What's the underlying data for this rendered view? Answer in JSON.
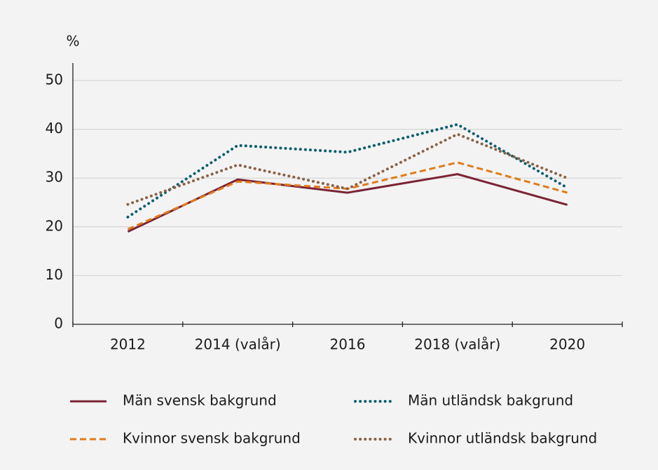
{
  "chart_data": {
    "type": "line",
    "y_label": "%",
    "categories": [
      "2012",
      "2014 (valår)",
      "2016",
      "2018 (valår)",
      "2020"
    ],
    "ylim": [
      0,
      50
    ],
    "yticks": [
      0,
      10,
      20,
      30,
      40,
      50
    ],
    "grid": true,
    "series": [
      {
        "name": "Män svensk bakgrund",
        "color": "#7b2335",
        "dash": "solid",
        "values": [
          19,
          29.7,
          27,
          30.8,
          24.5
        ]
      },
      {
        "name": "Män utländsk bakgrund",
        "color": "#0e5f6e",
        "dash": "dotted",
        "values": [
          22,
          36.7,
          35.3,
          41,
          28
        ]
      },
      {
        "name": "Kvinnor svensk bakgrund",
        "color": "#e07b1a",
        "dash": "dashed",
        "values": [
          19.5,
          29.3,
          27.8,
          33.2,
          27
        ]
      },
      {
        "name": "Kvinnor utländsk bakgrund",
        "color": "#8a6245",
        "dash": "dotted",
        "values": [
          24.6,
          32.7,
          27.8,
          39,
          30
        ]
      }
    ]
  }
}
